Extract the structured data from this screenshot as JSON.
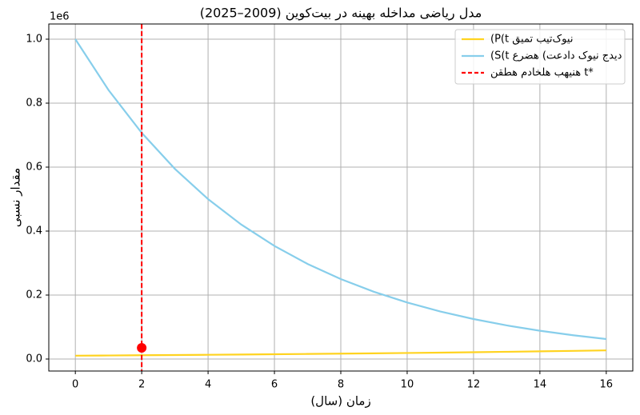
{
  "chart_data": {
    "type": "line",
    "title": "مدل ریاضی مداخله بهینه در بیت‌کوین (2009–2025)",
    "x_label": "زمان (سال)",
    "y_label": "مقدار نسبی",
    "y_offset_label": "1e6",
    "x": [
      0,
      1,
      2,
      3,
      4,
      5,
      6,
      7,
      8,
      9,
      10,
      11,
      12,
      13,
      14,
      15,
      16
    ],
    "series": [
      {
        "name": "(P(t قیمت بیت‌کوین",
        "color": "#ffd320",
        "values": [
          10500,
          11140,
          11810,
          12530,
          13290,
          14100,
          14960,
          15870,
          16830,
          17860,
          18940,
          20090,
          21310,
          22610,
          23980,
          25440,
          27000
        ]
      },
      {
        "name": "(S(t عرضه (تعداد کوین جدید",
        "color": "#87ceeb",
        "values": [
          1000000,
          840896,
          707107,
          594604,
          500000,
          420448,
          353553,
          297302,
          250000,
          210224,
          176777,
          148651,
          125000,
          105112,
          88388,
          74325,
          62500
        ]
      }
    ],
    "vline": {
      "name": "نقطه مداخله بهینه t*",
      "color": "#ff0000",
      "x": 2
    },
    "point": {
      "x": 2,
      "y": 35000,
      "color": "#ff0000"
    },
    "xlim": [
      -0.8,
      16.8
    ],
    "ylim": [
      -37500,
      1047500
    ],
    "xticks": [
      0,
      2,
      4,
      6,
      8,
      10,
      12,
      14,
      16
    ],
    "yticks": [
      {
        "value": 0,
        "label": "0.0"
      },
      {
        "value": 200000,
        "label": "0.2"
      },
      {
        "value": 400000,
        "label": "0.4"
      },
      {
        "value": 600000,
        "label": "0.6"
      },
      {
        "value": 800000,
        "label": "0.8"
      },
      {
        "value": 1000000,
        "label": "1.0"
      }
    ],
    "grid": true,
    "legend": "upper-right"
  }
}
